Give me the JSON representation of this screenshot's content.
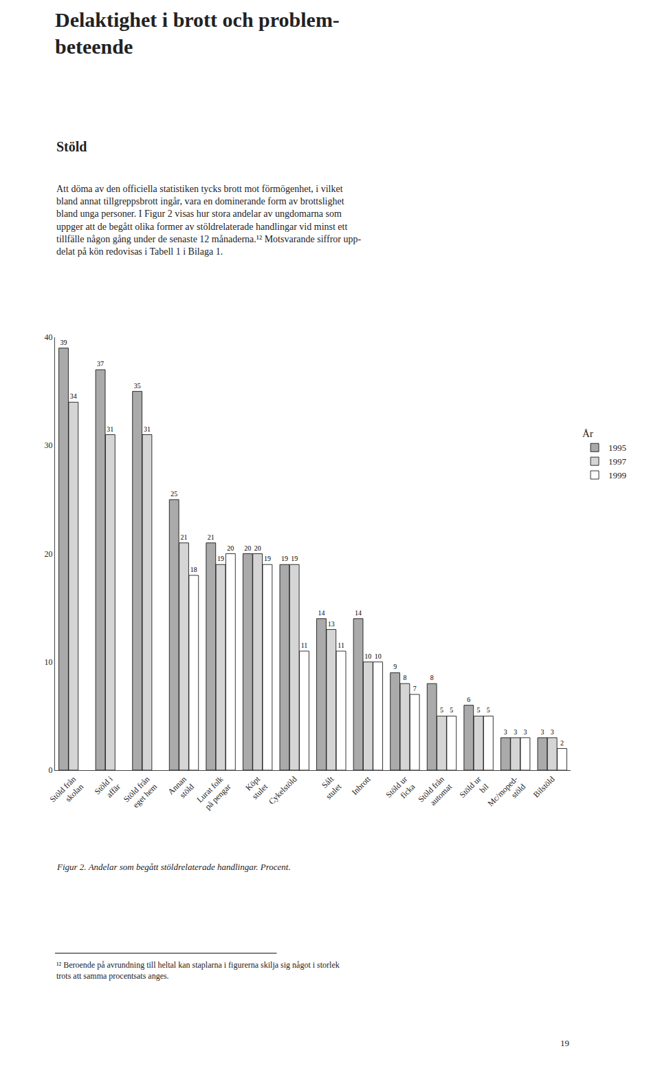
{
  "chart_data": {
    "type": "bar",
    "title": "Delaktighet i brott och problem-\nbeteende",
    "subtitle": "Stöld",
    "annotations": [
      "Att döma av den officiella statistiken tycks brott mot förmögenhet, i vilket\nbland annat tillgreppsbrott ingår, vara en dominerande form av brottslighet\nbland unga personer. I Figur 2 visas hur stora andelar av ungdomarna som\nuppger att de begått olika former av stöldrelaterade handlingar vid minst ett\ntillfälle någon gång under de senaste 12 månaderna.¹² Motsvarande siffror upp-\ndelat på kön redovisas i Tabell 1 i Bilaga 1.",
      "Figur 2. Andelar som begått stöldrelaterade handlingar. Procent.",
      "¹² Beroende på avrundning till heltal kan staplarna i figurerna skilja sig något i storlek\ntrots att samma procentsats anges.",
      "19"
    ],
    "legend_title": "År",
    "legend": "right",
    "categories": [
      "Stöld från\nskolan",
      "Stöld i\naffär",
      "Stöld från\neget hem",
      "Annan\nstöld",
      "Lurat folk\npå pengar",
      "Köpt\nstulet",
      "Cykelstöld",
      "Sålt\nstulet",
      "Inbrott",
      "Stöld ur\nficka",
      "Stöld från\nautomat",
      "Stöld ur\nbil",
      "Mc/moped-\nstöld",
      "Bilstöld"
    ],
    "series": [
      {
        "name": "1995",
        "color": "#aaaaaa",
        "values": [
          39,
          37,
          35,
          25,
          21,
          20,
          19,
          14,
          14,
          9,
          8,
          6,
          3,
          3
        ]
      },
      {
        "name": "1997",
        "color": "#d5d5d5",
        "values": [
          34,
          31,
          31,
          21,
          19,
          20,
          19,
          13,
          10,
          8,
          5,
          5,
          3,
          3
        ]
      },
      {
        "name": "1999",
        "color": "#ffffff",
        "values": [
          null,
          null,
          null,
          18,
          20,
          19,
          11,
          11,
          10,
          7,
          5,
          5,
          3,
          2
        ]
      }
    ],
    "ylim": [
      0,
      40
    ],
    "yticks": [
      0,
      10,
      20,
      30,
      40
    ],
    "grid": false,
    "data_labels": true
  }
}
